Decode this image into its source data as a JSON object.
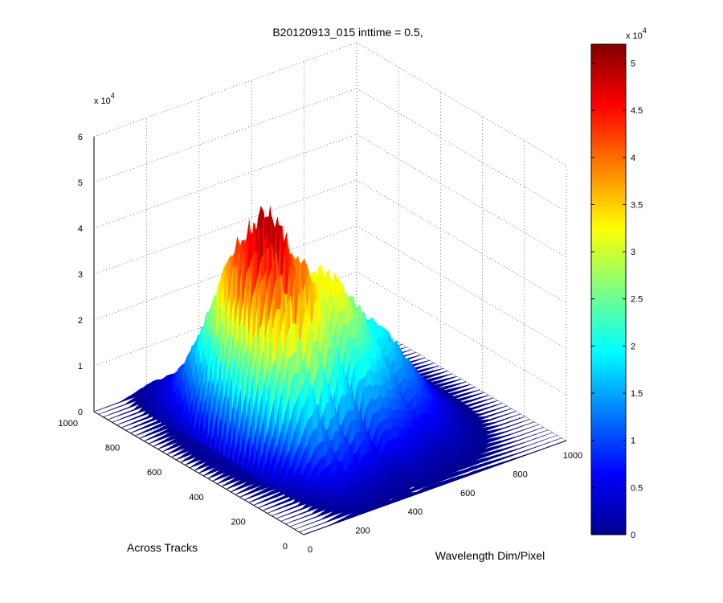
{
  "chart_data": {
    "type": "surface",
    "title": "B20120913_015 inttime = 0.5,",
    "xlabel": "Wavelength Dim/Pixel",
    "ylabel": "Across Tracks",
    "zlabel": "",
    "x_range": [
      0,
      1000
    ],
    "y_range": [
      0,
      1000
    ],
    "z_range": [
      0,
      60000
    ],
    "x_ticks": [
      "0",
      "200",
      "400",
      "600",
      "800",
      "1000"
    ],
    "y_ticks": [
      "0",
      "200",
      "400",
      "600",
      "800",
      "1000"
    ],
    "z_ticks": [
      "0",
      "1",
      "2",
      "3",
      "4",
      "5",
      "6"
    ],
    "z_exponent": "x 10",
    "z_exponent_power": "4",
    "grid": true,
    "colormap": "jet",
    "colorbar": {
      "range": [
        0,
        52000
      ],
      "ticks": [
        "0",
        "0.5",
        "1",
        "1.5",
        "2",
        "2.5",
        "3",
        "3.5",
        "4",
        "4.5",
        "5"
      ],
      "exponent": "x 10",
      "exponent_power": "4"
    },
    "peak_profile": {
      "x_wavelength": [
        0,
        100,
        150,
        200,
        250,
        300,
        350,
        400,
        450,
        500,
        550,
        600,
        650,
        700,
        750,
        800,
        850,
        900,
        1000
      ],
      "z_peak": [
        0,
        2000,
        20000,
        42000,
        53000,
        52000,
        46000,
        38000,
        33000,
        35000,
        30000,
        26000,
        22000,
        18000,
        12000,
        7000,
        3000,
        800,
        0
      ]
    }
  }
}
